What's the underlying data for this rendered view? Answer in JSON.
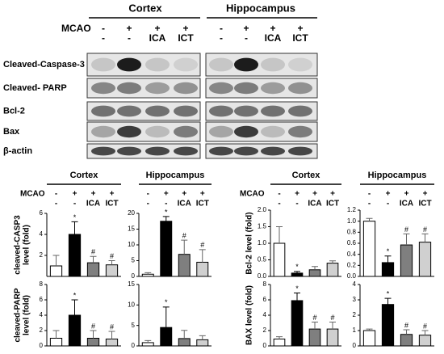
{
  "conditions": {
    "label": "MCAO",
    "rows": [
      [
        "-",
        "+",
        "+",
        "+"
      ],
      [
        "-",
        "-",
        "ICA",
        "ICT"
      ]
    ]
  },
  "blot": {
    "groups": [
      "Cortex",
      "Hippocampus"
    ],
    "bands": [
      "Cleaved-Caspase-3",
      "Cleaved- PARP",
      "Bcl-2",
      "Bax",
      "β-actin"
    ]
  },
  "chart_data": [
    {
      "type": "bar",
      "title": "Cortex",
      "ylabel": [
        "cleaved-CASP3",
        "level (fold)"
      ],
      "values": [
        1,
        4,
        1.3,
        1.1
      ],
      "errors": [
        1,
        1.2,
        0.6,
        0.4
      ],
      "annotations": [
        null,
        "*",
        "#",
        "#"
      ],
      "colors": [
        "#ffffff",
        "#000000",
        "#7f7f7f",
        "#d0d0d0"
      ],
      "ylim": [
        0,
        6
      ],
      "yticks": [
        2,
        4,
        6
      ]
    },
    {
      "type": "bar",
      "title": "Hippocampus",
      "values": [
        0.7,
        17.5,
        7,
        4.5
      ],
      "errors": [
        0.5,
        1.5,
        4.5,
        4
      ],
      "annotations": [
        null,
        "*",
        "#",
        "#"
      ],
      "colors": [
        "#ffffff",
        "#000000",
        "#7f7f7f",
        "#d0d0d0"
      ],
      "ylim": [
        0,
        20
      ],
      "yticks": [
        0,
        5,
        10,
        15,
        20
      ]
    },
    {
      "type": "bar",
      "ylabel": [
        "cleaved-PARP",
        "level (fold)"
      ],
      "values": [
        1,
        4,
        1,
        0.9
      ],
      "errors": [
        1,
        2,
        1,
        1
      ],
      "annotations": [
        null,
        "*",
        "#",
        "#"
      ],
      "colors": [
        "#ffffff",
        "#000000",
        "#7f7f7f",
        "#d0d0d0"
      ],
      "ylim": [
        0,
        8
      ],
      "yticks": [
        0,
        2,
        4,
        6,
        8
      ]
    },
    {
      "type": "bar",
      "values": [
        0.8,
        4.5,
        1.8,
        1.5
      ],
      "errors": [
        0.5,
        5,
        2,
        1
      ],
      "annotations": [
        null,
        "*",
        null,
        null
      ],
      "colors": [
        "#ffffff",
        "#000000",
        "#7f7f7f",
        "#d0d0d0"
      ],
      "ylim": [
        0,
        15
      ],
      "yticks": [
        0,
        5,
        10,
        15
      ]
    },
    {
      "type": "bar",
      "title": "Cortex",
      "ylabel": [
        "Bcl-2 level (fold)"
      ],
      "values": [
        1,
        0.1,
        0.2,
        0.4
      ],
      "errors": [
        0.5,
        0.05,
        0.1,
        0.07
      ],
      "annotations": [
        null,
        "*",
        null,
        null
      ],
      "colors": [
        "#ffffff",
        "#000000",
        "#7f7f7f",
        "#d0d0d0"
      ],
      "ylim": [
        0,
        2
      ],
      "yticks": [
        {
          "value": 0,
          "label": "0.0"
        },
        {
          "value": 0.5,
          "label": "0.5"
        },
        {
          "value": 1,
          "label": "1.0"
        },
        {
          "value": 1.5,
          "label": "1.5"
        },
        {
          "value": 2,
          "label": "2.0"
        }
      ]
    },
    {
      "type": "bar",
      "title": "Hippocampus",
      "values": [
        1,
        0.25,
        0.57,
        0.62
      ],
      "errors": [
        0.05,
        0.12,
        0.2,
        0.15
      ],
      "annotations": [
        null,
        "*",
        "#",
        "#"
      ],
      "colors": [
        "#ffffff",
        "#000000",
        "#7f7f7f",
        "#d0d0d0"
      ],
      "ylim": [
        0,
        1.2
      ],
      "yticks": [
        {
          "value": 0,
          "label": "0.0"
        },
        0.2,
        0.4,
        0.6,
        0.8,
        {
          "value": 1,
          "label": "1.0"
        },
        1.2
      ]
    },
    {
      "type": "bar",
      "ylabel": [
        "BAX level (fold)"
      ],
      "values": [
        0.9,
        5.9,
        2.2,
        2.2
      ],
      "errors": [
        0.3,
        1,
        0.9,
        0.9
      ],
      "annotations": [
        null,
        "*",
        "#",
        "#"
      ],
      "colors": [
        "#ffffff",
        "#000000",
        "#7f7f7f",
        "#d0d0d0"
      ],
      "ylim": [
        0,
        8
      ],
      "yticks": [
        0,
        2,
        4,
        6,
        8
      ]
    },
    {
      "type": "bar",
      "values": [
        1,
        2.7,
        0.75,
        0.7
      ],
      "errors": [
        0.1,
        0.4,
        0.3,
        0.3
      ],
      "annotations": [
        null,
        "*",
        "#",
        "#"
      ],
      "colors": [
        "#ffffff",
        "#000000",
        "#7f7f7f",
        "#d0d0d0"
      ],
      "ylim": [
        0,
        4
      ],
      "yticks": [
        0,
        1,
        2,
        3,
        4
      ]
    }
  ]
}
